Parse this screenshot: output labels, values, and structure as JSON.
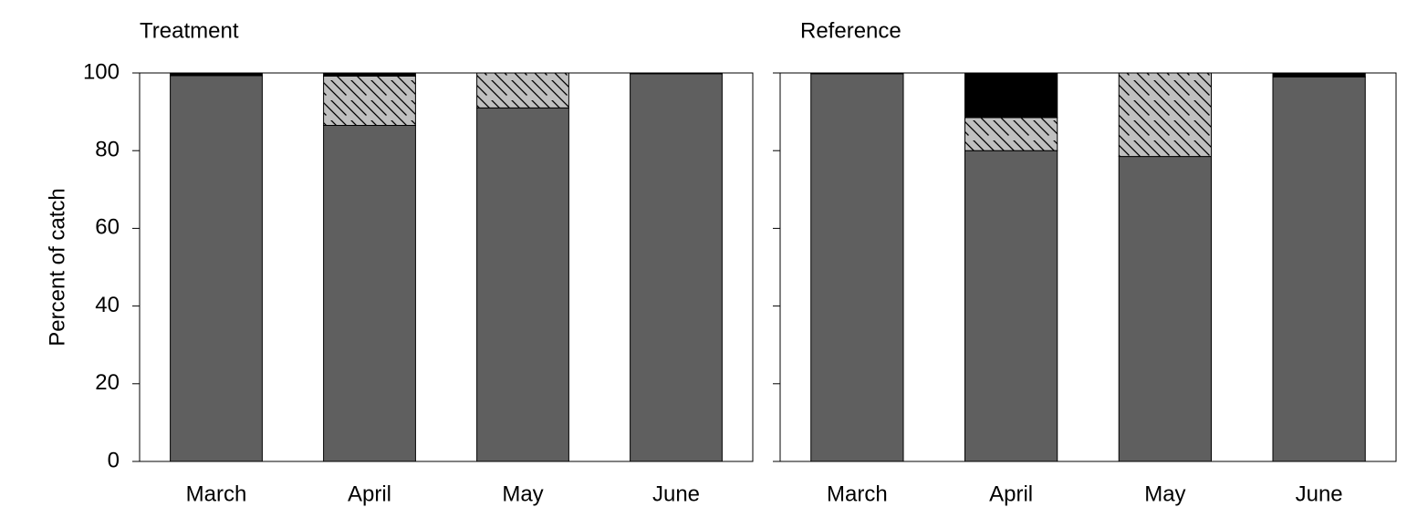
{
  "chart_data": [
    {
      "type": "stacked_bar",
      "title": "Treatment",
      "ylabel": "Percent of catch",
      "categories": [
        "March",
        "April",
        "May",
        "June"
      ],
      "series": [
        {
          "color": "#5f5f5f",
          "values": [
            99.3,
            86.5,
            91,
            99.8
          ]
        },
        {
          "color": "#c0c0c0",
          "pattern": "hatch",
          "values": [
            0,
            12.7,
            9,
            0
          ]
        },
        {
          "color": "#000000",
          "values": [
            0.7,
            0.8,
            0,
            0.2
          ]
        }
      ],
      "ylim": [
        0,
        100
      ],
      "yticks": [
        0,
        20,
        40,
        60,
        80,
        100
      ],
      "ytick_labels": true
    },
    {
      "type": "stacked_bar",
      "title": "Reference",
      "categories": [
        "March",
        "April",
        "May",
        "June"
      ],
      "series": [
        {
          "color": "#5f5f5f",
          "values": [
            99.8,
            80,
            78.5,
            99
          ]
        },
        {
          "color": "#c0c0c0",
          "pattern": "hatch",
          "values": [
            0,
            8.5,
            21.5,
            0
          ]
        },
        {
          "color": "#000000",
          "values": [
            0.2,
            11.5,
            0,
            1
          ]
        }
      ],
      "ylim": [
        0,
        100
      ],
      "yticks": [
        0,
        20,
        40,
        60,
        80,
        100
      ],
      "ytick_labels": false
    }
  ]
}
